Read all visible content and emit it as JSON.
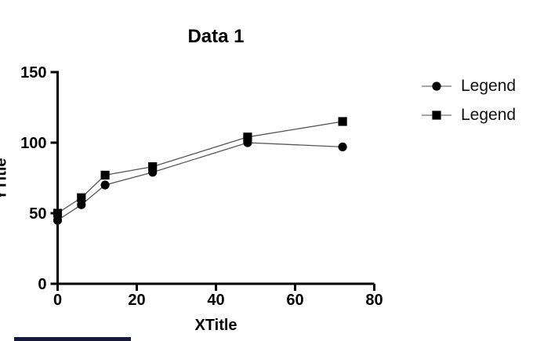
{
  "title": "Data 1",
  "chart_data": {
    "type": "line",
    "title": "Data 1",
    "xlabel": "XTitle",
    "ylabel": "YTitle",
    "x": [
      0,
      6,
      12,
      24,
      48,
      72
    ],
    "series": [
      {
        "name": "Legend",
        "marker": "circle",
        "values": [
          45,
          56,
          70,
          79,
          100,
          97
        ]
      },
      {
        "name": "Legend",
        "marker": "square",
        "values": [
          50,
          61,
          77,
          83,
          104,
          115
        ]
      }
    ],
    "xlim": [
      0,
      80
    ],
    "ylim": [
      0,
      150
    ],
    "xticks": [
      0,
      20,
      40,
      60,
      80
    ],
    "yticks": [
      0,
      50,
      100,
      150
    ],
    "grid": false,
    "legend_position": "right",
    "colors": {
      "marker": "#000000",
      "line": "#555555",
      "legend_line": "#888888",
      "axis": "#000000",
      "text": "#000000"
    }
  },
  "legend": {
    "items": [
      {
        "label": "Legend",
        "marker": "circle"
      },
      {
        "label": "Legend",
        "marker": "square"
      }
    ]
  },
  "footer_bar_color": "#181838"
}
